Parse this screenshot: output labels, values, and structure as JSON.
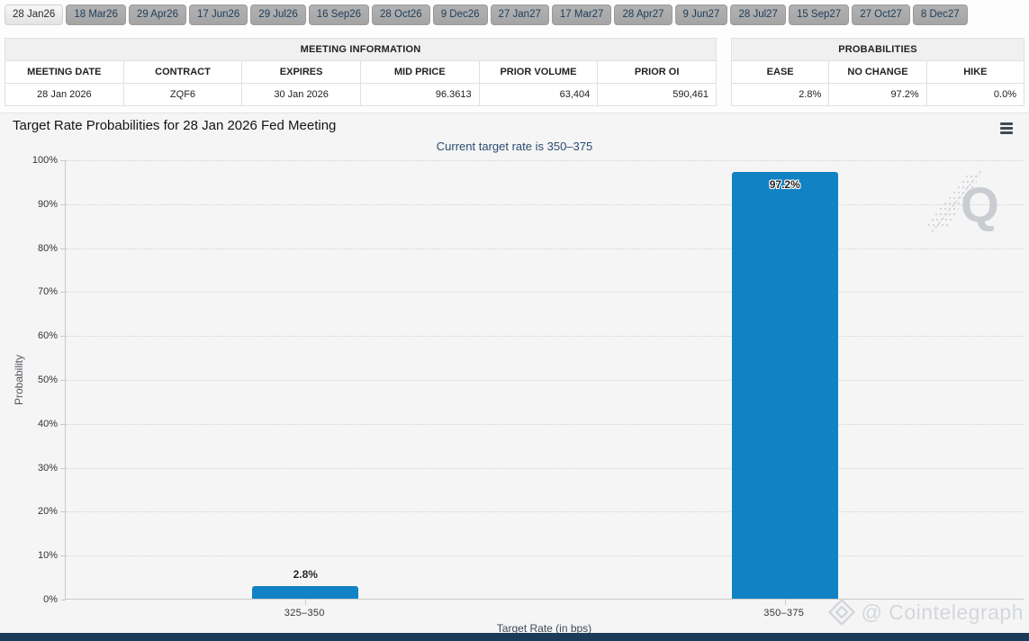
{
  "colors": {
    "bar": "#1182c3",
    "subtitle_text": "#2b4c6f",
    "tab_text": "#1d3d5c",
    "bottom_strip": "#1c3b59",
    "watermark_gray": "#cdd0d4"
  },
  "tabs": {
    "items": [
      {
        "label": "28 Jan26",
        "selected": true
      },
      {
        "label": "18 Mar26",
        "selected": false
      },
      {
        "label": "29 Apr26",
        "selected": false
      },
      {
        "label": "17 Jun26",
        "selected": false
      },
      {
        "label": "29 Jul26",
        "selected": false
      },
      {
        "label": "16 Sep26",
        "selected": false
      },
      {
        "label": "28 Oct26",
        "selected": false
      },
      {
        "label": "9 Dec26",
        "selected": false
      },
      {
        "label": "27 Jan27",
        "selected": false
      },
      {
        "label": "17 Mar27",
        "selected": false
      },
      {
        "label": "28 Apr27",
        "selected": false
      },
      {
        "label": "9 Jun27",
        "selected": false
      },
      {
        "label": "28 Jul27",
        "selected": false
      },
      {
        "label": "15 Sep27",
        "selected": false
      },
      {
        "label": "27 Oct27",
        "selected": false
      },
      {
        "label": "8 Dec27",
        "selected": false
      }
    ]
  },
  "meeting_info": {
    "title": "MEETING INFORMATION",
    "columns": [
      {
        "label": "MEETING DATE",
        "align": "center"
      },
      {
        "label": "CONTRACT",
        "align": "center"
      },
      {
        "label": "EXPIRES",
        "align": "center"
      },
      {
        "label": "MID PRICE",
        "align": "right"
      },
      {
        "label": "PRIOR VOLUME",
        "align": "right"
      },
      {
        "label": "PRIOR OI",
        "align": "right"
      }
    ],
    "row": [
      "28 Jan 2026",
      "ZQF6",
      "30 Jan 2026",
      "96.3613",
      "63,404",
      "590,461"
    ]
  },
  "probabilities": {
    "title": "PROBABILITIES",
    "columns": [
      {
        "label": "EASE",
        "align": "right"
      },
      {
        "label": "NO CHANGE",
        "align": "right"
      },
      {
        "label": "HIKE",
        "align": "right"
      }
    ],
    "row": [
      "2.8%",
      "97.2%",
      "0.0%"
    ]
  },
  "chart_data": {
    "type": "bar",
    "title": "Target Rate Probabilities for 28 Jan 2026 Fed Meeting",
    "subtitle": "Current target rate is 350–375",
    "categories": [
      "325–350",
      "350–375"
    ],
    "values": [
      2.8,
      97.2
    ],
    "data_labels": [
      "2.8%",
      "97.2%"
    ],
    "xlabel": "Target Rate (in bps)",
    "ylabel": "Probability",
    "ylim": [
      0,
      100
    ],
    "yticks": [
      "0%",
      "10%",
      "20%",
      "30%",
      "40%",
      "50%",
      "60%",
      "70%",
      "80%",
      "90%",
      "100%"
    ],
    "grid": "dotted-horizontal",
    "legend": "none",
    "bar_color": "#1182c3"
  },
  "icons": {
    "chart_menu": "hamburger-icon",
    "credit_logo": "cointelegraph-diamond-icon",
    "q_logo": "quikstrike-q-watermark"
  },
  "watermarks": {
    "logo_letter": "Q",
    "credit": "@ Cointelegraph"
  }
}
